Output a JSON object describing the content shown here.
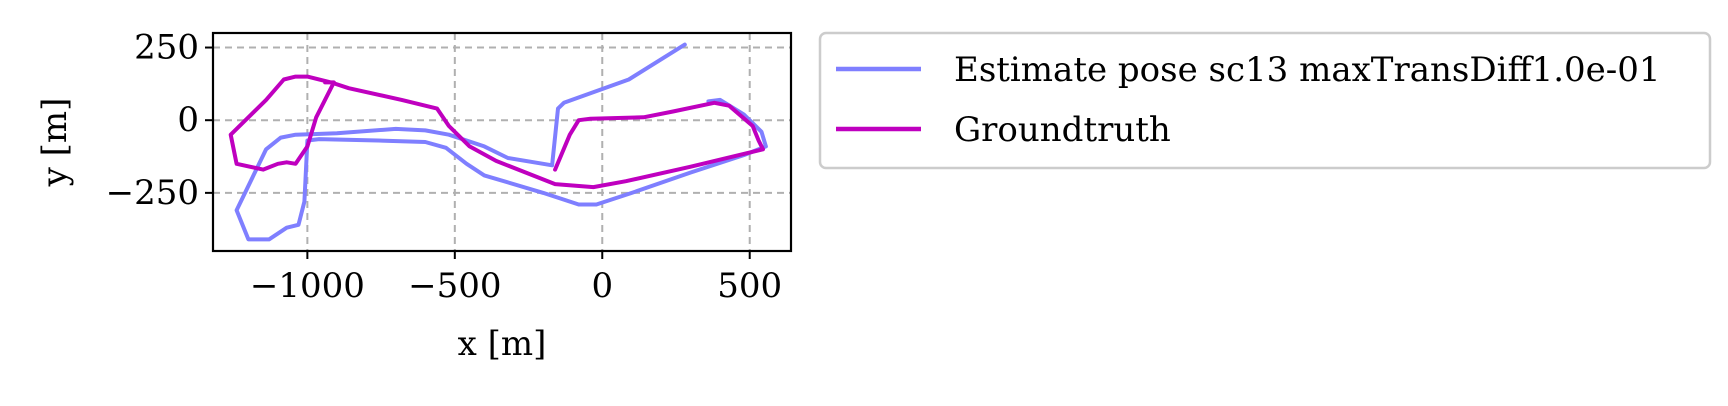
{
  "chart_data": {
    "type": "line",
    "xlabel": "x [m]",
    "ylabel": "y [m]",
    "xlim": [
      -1320,
      640
    ],
    "ylim": [
      -450,
      300
    ],
    "xticks": [
      -1000,
      -500,
      0,
      500
    ],
    "xtick_labels": [
      "−1000",
      "−500",
      "0",
      "500"
    ],
    "yticks": [
      250,
      0,
      -250
    ],
    "ytick_labels": [
      "250",
      "0",
      "−250"
    ],
    "grid": true,
    "legend_position": "outside-right-top",
    "series": [
      {
        "name": "Estimate pose sc13 maxTransDiff1.0e-01",
        "color": "#7f7fff",
        "points": [
          [
            280,
            260
          ],
          [
            90,
            140
          ],
          [
            -130,
            60
          ],
          [
            -150,
            40
          ],
          [
            -170,
            -155
          ],
          [
            -320,
            -130
          ],
          [
            -400,
            -90
          ],
          [
            -520,
            -50
          ],
          [
            -600,
            -35
          ],
          [
            -700,
            -30
          ],
          [
            -900,
            -45
          ],
          [
            -1040,
            -50
          ],
          [
            -1090,
            -60
          ],
          [
            -1140,
            -100
          ],
          [
            -1240,
            -310
          ],
          [
            -1200,
            -410
          ],
          [
            -1130,
            -410
          ],
          [
            -1070,
            -370
          ],
          [
            -1030,
            -360
          ],
          [
            -1010,
            -280
          ],
          [
            -1000,
            -70
          ],
          [
            -960,
            -65
          ],
          [
            -760,
            -70
          ],
          [
            -600,
            -75
          ],
          [
            -530,
            -95
          ],
          [
            -460,
            -150
          ],
          [
            -400,
            -190
          ],
          [
            -200,
            -250
          ],
          [
            -80,
            -290
          ],
          [
            -20,
            -290
          ],
          [
            100,
            -250
          ],
          [
            300,
            -180
          ],
          [
            480,
            -120
          ],
          [
            555,
            -90
          ],
          [
            540,
            -40
          ],
          [
            480,
            20
          ],
          [
            400,
            70
          ],
          [
            360,
            65
          ]
        ]
      },
      {
        "name": "Groundtruth",
        "color": "#bf00bf",
        "points": [
          [
            -160,
            -170
          ],
          [
            -110,
            -50
          ],
          [
            -80,
            0
          ],
          [
            -40,
            5
          ],
          [
            140,
            10
          ],
          [
            240,
            30
          ],
          [
            380,
            60
          ],
          [
            430,
            50
          ],
          [
            510,
            -20
          ],
          [
            530,
            -70
          ],
          [
            545,
            -100
          ],
          [
            300,
            -160
          ],
          [
            80,
            -210
          ],
          [
            -30,
            -230
          ],
          [
            -160,
            -220
          ],
          [
            -360,
            -140
          ],
          [
            -450,
            -90
          ],
          [
            -520,
            -20
          ],
          [
            -560,
            40
          ],
          [
            -680,
            70
          ],
          [
            -860,
            110
          ],
          [
            -920,
            130
          ],
          [
            -1000,
            150
          ],
          [
            -1040,
            150
          ],
          [
            -1080,
            140
          ],
          [
            -1140,
            70
          ],
          [
            -1260,
            -50
          ],
          [
            -1240,
            -150
          ],
          [
            -1150,
            -170
          ],
          [
            -1100,
            -150
          ],
          [
            -1070,
            -145
          ],
          [
            -1040,
            -150
          ],
          [
            -1000,
            -90
          ],
          [
            -970,
            10
          ],
          [
            -910,
            130
          ],
          [
            -940,
            130
          ]
        ]
      }
    ]
  }
}
